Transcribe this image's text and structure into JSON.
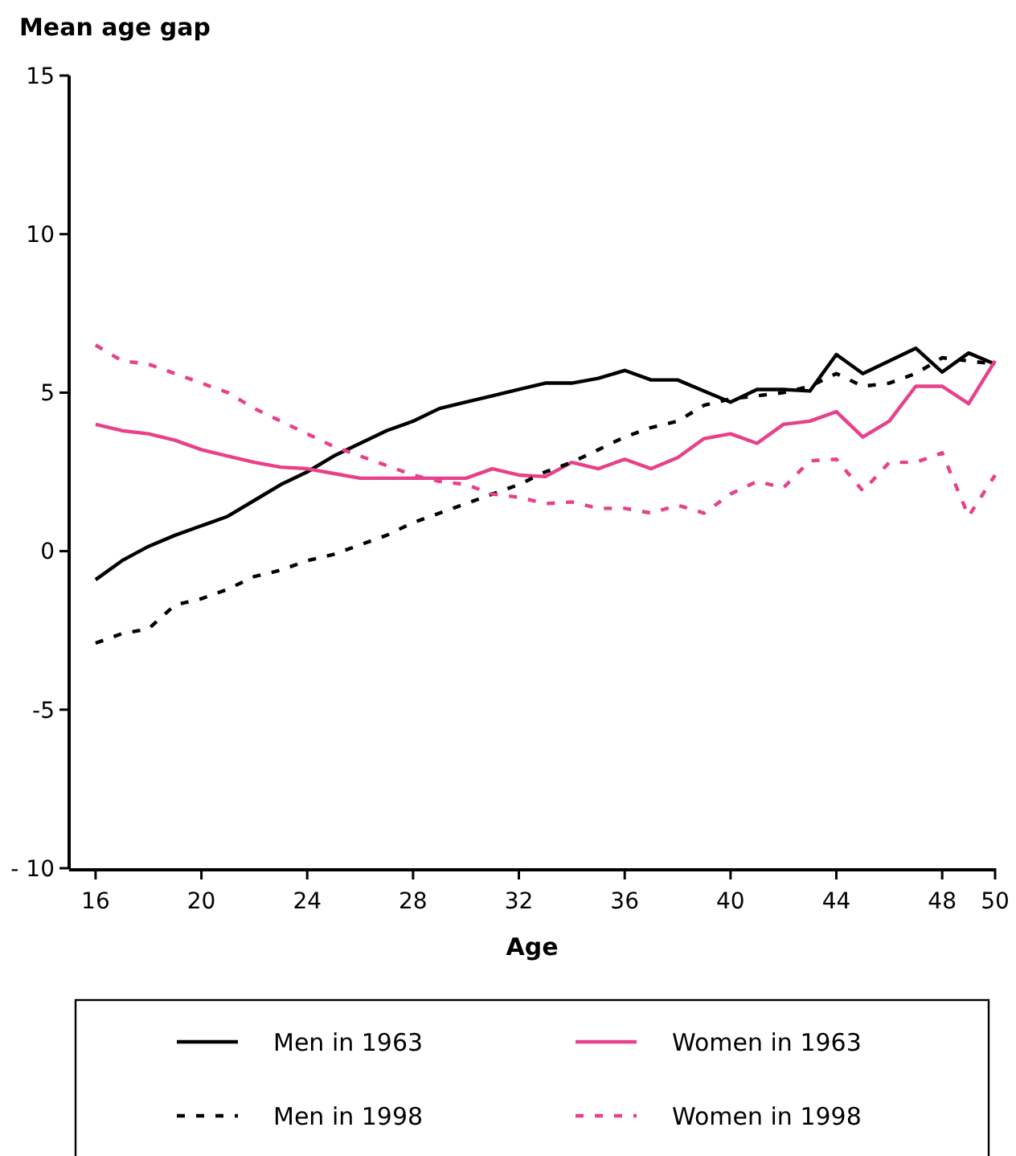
{
  "chart_data": {
    "type": "line",
    "ylabel": "Mean age gap",
    "xlabel": "Age",
    "x": [
      16,
      17,
      18,
      19,
      20,
      21,
      22,
      23,
      24,
      25,
      26,
      27,
      28,
      29,
      30,
      31,
      32,
      33,
      34,
      35,
      36,
      37,
      38,
      39,
      40,
      41,
      42,
      43,
      44,
      45,
      46,
      47,
      48,
      49,
      50
    ],
    "xlim": [
      15,
      50
    ],
    "xticks": [
      16,
      20,
      24,
      28,
      32,
      36,
      40,
      44,
      48,
      50
    ],
    "ylim": [
      -10,
      15
    ],
    "yticks": [
      {
        "value": -10,
        "label": "- 10"
      },
      {
        "value": -5,
        "label": "-5"
      },
      0,
      5,
      10,
      15
    ],
    "legend": "bottom",
    "grid": false,
    "series": [
      {
        "name": "Men in 1963",
        "color": "#000000",
        "line_style": "solid",
        "values": [
          -0.9,
          -0.3,
          0.15,
          0.5,
          0.8,
          1.1,
          1.6,
          2.1,
          2.5,
          3.0,
          3.4,
          3.8,
          4.1,
          4.5,
          4.7,
          4.9,
          5.1,
          5.3,
          5.3,
          5.45,
          5.7,
          5.4,
          5.4,
          5.05,
          4.7,
          5.1,
          5.1,
          5.05,
          6.2,
          5.6,
          6.0,
          6.4,
          5.65,
          6.25,
          5.9
        ]
      },
      {
        "name": "Women in 1963",
        "color": "#e8408a",
        "line_style": "solid",
        "values": [
          4.0,
          3.8,
          3.7,
          3.5,
          3.2,
          3.0,
          2.8,
          2.65,
          2.6,
          2.45,
          2.3,
          2.3,
          2.3,
          2.3,
          2.3,
          2.6,
          2.4,
          2.35,
          2.8,
          2.6,
          2.9,
          2.6,
          2.95,
          3.55,
          3.7,
          3.4,
          4.0,
          4.1,
          4.4,
          3.6,
          4.1,
          5.2,
          5.2,
          4.65,
          6.0
        ]
      },
      {
        "name": "Men in 1998",
        "color": "#000000",
        "line_style": "dashed",
        "values": [
          -2.9,
          -2.6,
          -2.45,
          -1.7,
          -1.5,
          -1.2,
          -0.8,
          -0.6,
          -0.3,
          -0.1,
          0.2,
          0.5,
          0.9,
          1.2,
          1.5,
          1.8,
          2.1,
          2.5,
          2.8,
          3.2,
          3.6,
          3.9,
          4.1,
          4.6,
          4.8,
          4.9,
          5.0,
          5.2,
          5.6,
          5.2,
          5.3,
          5.6,
          6.1,
          6.0,
          5.9
        ]
      },
      {
        "name": "Women in 1998",
        "color": "#e8408a",
        "line_style": "dashed",
        "values": [
          6.5,
          6.0,
          5.9,
          5.6,
          5.3,
          5.0,
          4.5,
          4.1,
          3.7,
          3.3,
          3.0,
          2.7,
          2.4,
          2.2,
          2.1,
          1.8,
          1.7,
          1.5,
          1.55,
          1.35,
          1.35,
          1.2,
          1.45,
          1.2,
          1.8,
          2.2,
          2.0,
          2.85,
          2.9,
          1.9,
          2.8,
          2.8,
          3.1,
          1.1,
          2.4
        ]
      }
    ]
  }
}
